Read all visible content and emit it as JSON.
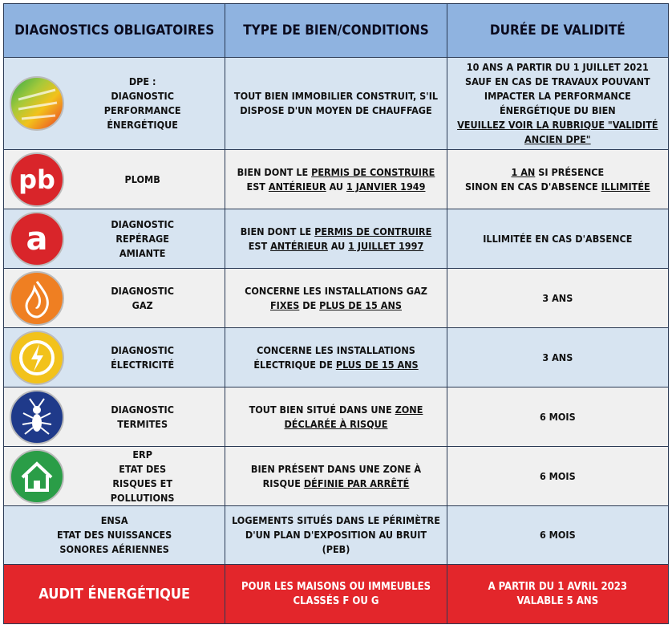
{
  "table": {
    "header": [
      "DIAGNOSTICS OBLIGATOIRES",
      "TYPE DE BIEN/CONDITIONS",
      "DURÉE DE VALIDITÉ"
    ],
    "rows": [
      {
        "name": [
          "DPE :",
          "DIAGNOSTIC",
          "PERFORMANCE",
          "ÉNERGÉTIQUE"
        ],
        "condition": [
          [
            "TOUT BIEN IMMOBILIER CONSTRUIT, S'IL"
          ],
          [
            "DISPOSE D'UN MOYEN DE CHAUFFAGE"
          ]
        ],
        "validity": [
          [
            "10 ANS A PARTIR DU 1 JUILLET 2021"
          ],
          [
            "SAUF EN CAS DE TRAVAUX POUVANT"
          ],
          [
            "IMPACTER LA PERFORMANCE"
          ],
          [
            "ÉNERGÉTIQUE DU BIEN"
          ],
          [
            {
              "text": "VEUILLEZ VOIR LA RUBRIQUE \"VALIDITÉ",
              "underline": true
            }
          ],
          [
            {
              "text": "ANCIEN DPE\"",
              "underline": true
            }
          ]
        ]
      },
      {
        "icon_label": "pb",
        "name": [
          "PLOMB"
        ],
        "condition": [
          [
            "BIEN DONT LE ",
            {
              "text": "PERMIS DE CONSTRUIRE ",
              "underline": true
            }
          ],
          [
            "EST ",
            {
              "text": "ANTÉRIEUR",
              "underline": true
            },
            " AU ",
            {
              "text": "1 JANVIER 1949",
              "underline": true
            }
          ]
        ],
        "validity": [
          [
            {
              "text": "1 AN",
              "underline": true
            },
            " SI PRÉSENCE"
          ],
          [
            "SINON EN CAS D'ABSENCE ",
            {
              "text": "ILLIMITÉE",
              "underline": true
            }
          ]
        ]
      },
      {
        "icon_label": "a",
        "name": [
          "DIAGNOSTIC",
          "REPÉRAGE",
          "AMIANTE"
        ],
        "condition": [
          [
            "BIEN DONT LE ",
            {
              "text": "PERMIS DE CONTRUIRE ",
              "underline": true
            }
          ],
          [
            "EST ",
            {
              "text": "ANTÉRIEUR",
              "underline": true
            },
            " AU ",
            {
              "text": "1 JUILLET 1997",
              "underline": true
            }
          ]
        ],
        "validity": [
          [
            "ILLIMITÉE EN CAS D'ABSENCE"
          ]
        ]
      },
      {
        "name": [
          "DIAGNOSTIC",
          "GAZ"
        ],
        "condition": [
          [
            "CONCERNE LES INSTALLATIONS GAZ"
          ],
          [
            {
              "text": "FIXES",
              "underline": true
            },
            " DE ",
            {
              "text": "PLUS DE 15 ANS",
              "underline": true
            }
          ]
        ],
        "validity": [
          [
            "3 ANS"
          ]
        ]
      },
      {
        "name": [
          "DIAGNOSTIC",
          "ÉLECTRICITÉ"
        ],
        "condition": [
          [
            "CONCERNE LES INSTALLATIONS"
          ],
          [
            "ÉLECTRIQUE DE ",
            {
              "text": "PLUS DE 15 ANS",
              "underline": true
            }
          ]
        ],
        "validity": [
          [
            "3 ANS"
          ]
        ]
      },
      {
        "name": [
          "DIAGNOSTIC",
          "TERMITES"
        ],
        "condition": [
          [
            "TOUT BIEN SITUÉ DANS UNE ",
            {
              "text": "ZONE ",
              "underline": true
            }
          ],
          [
            {
              "text": "DÉCLARÉE À RISQUE",
              "underline": true
            }
          ]
        ],
        "validity": [
          [
            "6 MOIS"
          ]
        ]
      },
      {
        "name": [
          "ERP",
          "ETAT DES",
          "RISQUES ET",
          "POLLUTIONS"
        ],
        "condition": [
          [
            "BIEN PRÉSENT DANS UNE ZONE À"
          ],
          [
            "RISQUE ",
            {
              "text": "DÉFINIE PAR ARRÊTÉ",
              "underline": true
            }
          ]
        ],
        "validity": [
          [
            "6 MOIS"
          ]
        ]
      },
      {
        "name": [
          "ENSA",
          "ETAT DES NUISSANCES",
          "SONORES AÉRIENNES"
        ],
        "condition": [
          [
            "LOGEMENTS SITUÉS DANS LE PÉRIMÈTRE"
          ],
          [
            "D'UN PLAN D'EXPOSITION AU BRUIT"
          ],
          [
            "(PEB)"
          ]
        ],
        "validity": [
          [
            "6 MOIS"
          ]
        ]
      },
      {
        "name": [
          "AUDIT ÉNERGÉTIQUE"
        ],
        "condition": [
          [
            "POUR LES MAISONS OU IMMEUBLES"
          ],
          [
            "CLASSÉS F OU G"
          ]
        ],
        "validity": [
          [
            "A PARTIR DU 1 AVRIL 2023"
          ],
          [
            "VALABLE 5 ANS"
          ]
        ]
      }
    ]
  }
}
